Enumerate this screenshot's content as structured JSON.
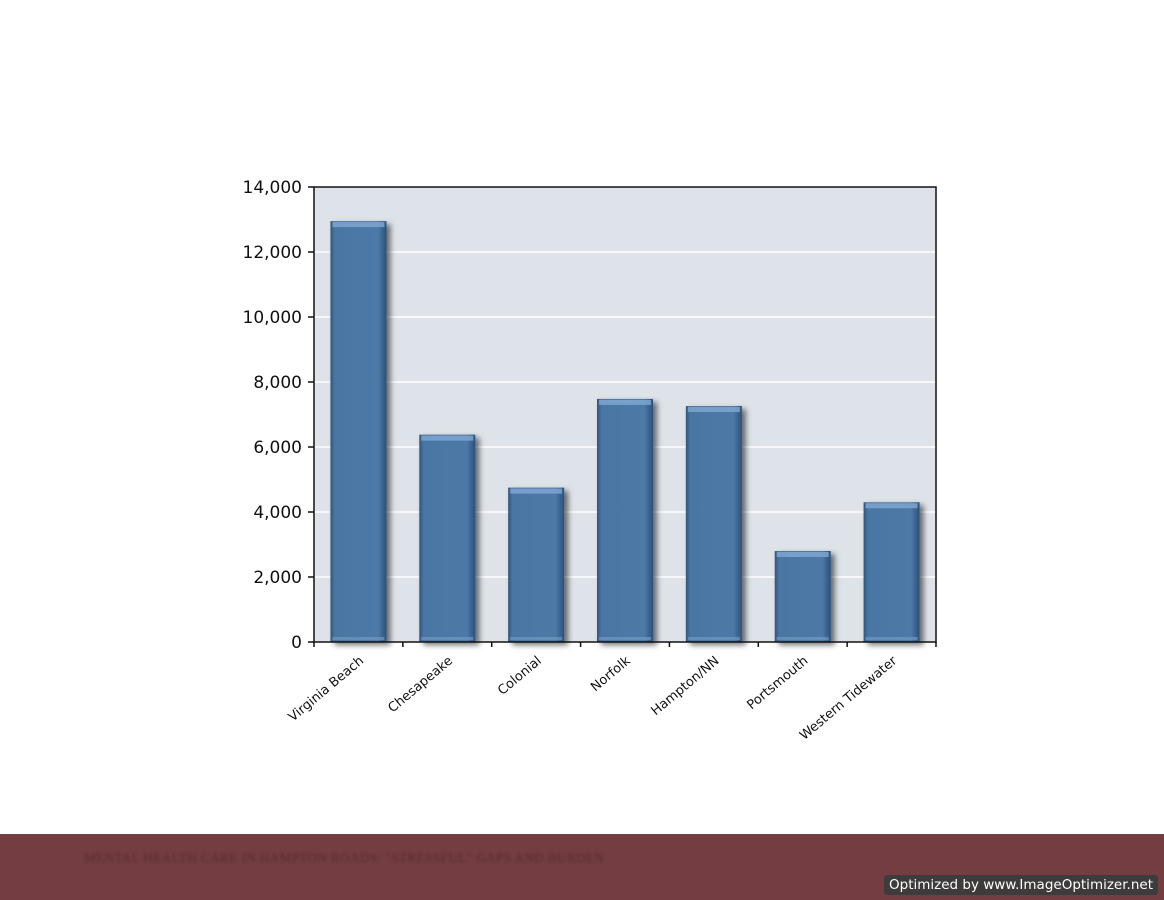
{
  "chart_data": {
    "type": "bar",
    "categories": [
      "Virginia Beach",
      "Chesapeake",
      "Colonial",
      "Norfolk",
      "Hampton/NN",
      "Portsmouth",
      "Western Tidewater"
    ],
    "values": [
      12950,
      6380,
      4750,
      7480,
      7260,
      2800,
      4300
    ],
    "ylim": [
      0,
      14000
    ],
    "yticks": [
      0,
      2000,
      4000,
      6000,
      8000,
      10000,
      12000,
      14000
    ],
    "ytick_labels": [
      "0",
      "2,000",
      "4,000",
      "6,000",
      "8,000",
      "10,000",
      "12,000",
      "14,000"
    ],
    "grid": true,
    "bar_color": "#4a76a4",
    "plot_background": "#dde3e8"
  },
  "footer": {
    "title": "MENTAL HEALTH CARE IN HAMPTON ROADS: \"STRESSFUL\" GAPS AND BURDEN",
    "watermark": "Optimized by www.ImageOptimizer.net",
    "band_color": "#733d42"
  }
}
